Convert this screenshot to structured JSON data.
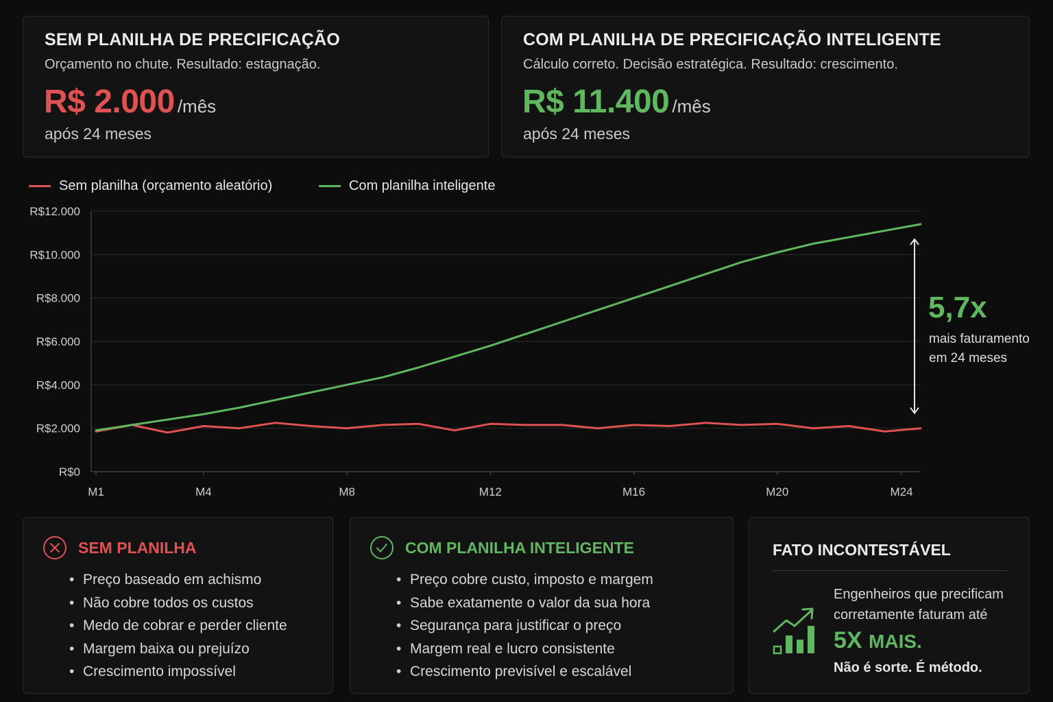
{
  "top_cards": {
    "left": {
      "title": "SEM PLANILHA DE PRECIFICAÇÃO",
      "subtitle": "Orçamento no chute. Resultado: estagnação.",
      "value": "R$ 2.000",
      "unit": "/mês",
      "footer": "após 24 meses",
      "accent": "#e05252"
    },
    "right": {
      "title": "COM PLANILHA DE PRECIFICAÇÃO INTELIGENTE",
      "subtitle": "Cálculo correto. Decisão estratégica. Resultado: crescimento.",
      "value": "R$ 11.400",
      "unit": "/mês",
      "footer": "após 24 meses",
      "accent": "#5fb85f"
    }
  },
  "chart_data": {
    "type": "line",
    "title": "",
    "xlabel": "",
    "ylabel": "",
    "ylim": [
      0,
      12000
    ],
    "grid": true,
    "legend_position": "top-left",
    "yticks": [
      "R$0",
      "R$2.000",
      "R$4.000",
      "R$6.000",
      "R$8.000",
      "R$10.000",
      "R$12.000"
    ],
    "xticks": [
      "M1",
      "M4",
      "M8",
      "M12",
      "M16",
      "M20",
      "M24"
    ],
    "x": [
      "M1",
      "M2",
      "M3",
      "M4",
      "M5",
      "M6",
      "M7",
      "M8",
      "M9",
      "M10",
      "M11",
      "M12",
      "M13",
      "M14",
      "M15",
      "M16",
      "M17",
      "M18",
      "M19",
      "M20",
      "M21",
      "M22",
      "M23",
      "M24"
    ],
    "series": [
      {
        "name": "Sem planilha (orçamento aleatório)",
        "color": "#e05252",
        "values": [
          1850,
          2150,
          1800,
          2100,
          2000,
          2250,
          2100,
          2000,
          2150,
          2200,
          1900,
          2200,
          2150,
          2150,
          2000,
          2150,
          2100,
          2250,
          2150,
          2200,
          2000,
          2100,
          1850,
          2000
        ]
      },
      {
        "name": "Com planilha inteligente",
        "color": "#5fb85f",
        "values": [
          1900,
          2150,
          2400,
          2650,
          2950,
          3300,
          3650,
          4000,
          4350,
          4800,
          5300,
          5800,
          6350,
          6900,
          7450,
          8000,
          8550,
          9100,
          9650,
          10100,
          10500,
          10800,
          11100,
          11400
        ]
      }
    ],
    "annotation": {
      "value": "5,7x",
      "text_line1": "mais faturamento",
      "text_line2": "em 24 meses"
    }
  },
  "bottom_cards": {
    "without": {
      "title": "SEM PLANILHA",
      "icon": "x-circle-icon",
      "items": [
        "Preço baseado em achismo",
        "Não cobre todos os custos",
        "Medo de cobrar e perder cliente",
        "Margem baixa ou prejuízo",
        "Crescimento impossível"
      ]
    },
    "with": {
      "title": "COM PLANILHA INTELIGENTE",
      "icon": "check-circle-icon",
      "items": [
        "Preço cobre custo, imposto e margem",
        "Sabe exatamente o valor da sua hora",
        "Segurança para justificar o preço",
        "Margem real e lucro consistente",
        "Crescimento previsível e escalável"
      ]
    },
    "fact": {
      "title": "FATO INCONTESTÁVEL",
      "icon": "growth-chart-icon",
      "text": "Engenheiros que precificam corretamente faturam até",
      "big_number": "5X",
      "big_suffix": "MAIS.",
      "ending": "Não é sorte. É método."
    }
  }
}
